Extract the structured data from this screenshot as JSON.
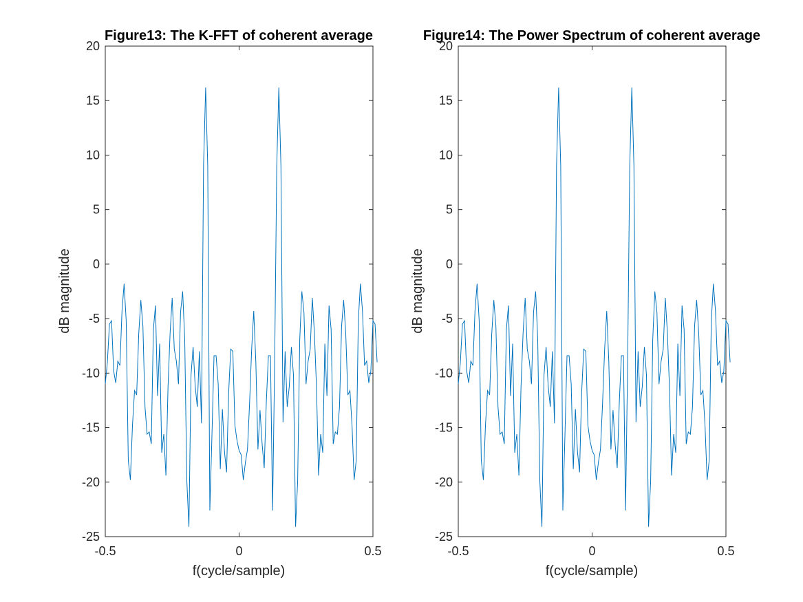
{
  "chart_data": [
    {
      "type": "line",
      "title": "Figure13: The K-FFT of coherent average",
      "xlabel": "f(cycle/sample)",
      "ylabel": "dB magnitude",
      "xlim": [
        -0.5,
        0.5
      ],
      "ylim": [
        -25,
        20
      ],
      "xticks": [
        -0.5,
        0,
        0.5
      ],
      "xtick_labels": [
        "-0.5",
        "0",
        "0.5"
      ],
      "yticks": [
        -25,
        -20,
        -15,
        -10,
        -5,
        0,
        5,
        10,
        15,
        20
      ],
      "ytick_labels": [
        "-25",
        "-20",
        "-15",
        "-10",
        "-5",
        "0",
        "5",
        "10",
        "15",
        "20"
      ],
      "grid": false,
      "color": "#0072BD",
      "x_start": -0.5,
      "x_step": 0.0078125,
      "y": [
        -11,
        -9,
        -5.5,
        -5.2,
        -9.8,
        -10.9,
        -8.9,
        -9.3,
        -4.3,
        -1.8,
        -5.2,
        -18.0,
        -19.8,
        -14.8,
        -11.6,
        -12.0,
        -6.4,
        -3.3,
        -5.7,
        -13.1,
        -15.6,
        -15.4,
        -16.5,
        -6.0,
        -3.8,
        -12.1,
        -7.3,
        -17.3,
        -15.6,
        -19.4,
        -11.3,
        -6.3,
        -3.1,
        -7.8,
        -8.9,
        -11.0,
        -4.4,
        -2.5,
        -6.9,
        -19.9,
        -24.1,
        -10.2,
        -7.6,
        -11.2,
        -13.1,
        -8.0,
        -14.6,
        9.1,
        16.2,
        9.0,
        -22.6,
        -15.8,
        -8.4,
        -8.4,
        -11.0,
        -18.8,
        -13.3,
        -17.2,
        -19.1,
        -11.8,
        -7.8,
        -8.0,
        -14.8,
        -16.2,
        -17.1,
        -17.5,
        -19.8,
        -18.2,
        -17.0,
        -12.8,
        -7.8,
        -4.3,
        -9.0,
        -17.0,
        -13.4,
        -16.5,
        -18.7,
        -12.7,
        -8.4,
        -8.4,
        -22.6,
        -9.0,
        9.0,
        16.2,
        9.0,
        -14.5,
        -8.0,
        -13.1,
        -11.2,
        -7.6,
        -10.2,
        -24.1,
        -19.9,
        -6.9,
        -2.5,
        -4.4,
        -11.0,
        -8.9,
        -7.8,
        -3.1,
        -6.3,
        -11.3,
        -19.4,
        -15.6,
        -17.3,
        -7.3,
        -12.1,
        -3.8,
        -6.0,
        -16.5,
        -15.4,
        -15.6,
        -13.1,
        -5.7,
        -3.3,
        -6.4,
        -12.0,
        -11.6,
        -14.8,
        -19.8,
        -18.0,
        -5.2,
        -1.8,
        -4.3,
        -9.3,
        -8.9,
        -10.9,
        -9.8,
        -5.2,
        -5.5,
        -9.0
      ]
    },
    {
      "type": "line",
      "title": "Figure14: The Power Spectrum of coherent average",
      "xlabel": "f(cycle/sample)",
      "ylabel": "dB magnitude",
      "xlim": [
        -0.5,
        0.5
      ],
      "ylim": [
        -25,
        20
      ],
      "xticks": [
        -0.5,
        0,
        0.5
      ],
      "xtick_labels": [
        "-0.5",
        "0",
        "0.5"
      ],
      "yticks": [
        -25,
        -20,
        -15,
        -10,
        -5,
        0,
        5,
        10,
        15,
        20
      ],
      "ytick_labels": [
        "-25",
        "-20",
        "-15",
        "-10",
        "-5",
        "0",
        "5",
        "10",
        "15",
        "20"
      ],
      "grid": false,
      "color": "#0072BD",
      "x_start": -0.5,
      "x_step": 0.0078125,
      "y": [
        -11,
        -9,
        -5.5,
        -5.2,
        -9.8,
        -10.9,
        -8.9,
        -9.3,
        -4.3,
        -1.8,
        -5.2,
        -18.0,
        -19.8,
        -14.8,
        -11.6,
        -12.0,
        -6.4,
        -3.3,
        -5.7,
        -13.1,
        -15.6,
        -15.4,
        -16.5,
        -6.0,
        -3.8,
        -12.1,
        -7.3,
        -17.3,
        -15.6,
        -19.4,
        -11.3,
        -6.3,
        -3.1,
        -7.8,
        -8.9,
        -11.0,
        -4.4,
        -2.5,
        -6.9,
        -19.9,
        -24.1,
        -10.2,
        -7.6,
        -11.2,
        -13.1,
        -8.0,
        -14.6,
        9.1,
        16.2,
        9.0,
        -22.6,
        -15.8,
        -8.4,
        -8.4,
        -11.0,
        -18.8,
        -13.3,
        -17.2,
        -19.1,
        -11.8,
        -7.8,
        -8.0,
        -14.8,
        -16.2,
        -17.1,
        -17.5,
        -19.8,
        -18.2,
        -17.0,
        -12.8,
        -7.8,
        -4.3,
        -9.0,
        -17.0,
        -13.4,
        -16.5,
        -18.7,
        -12.7,
        -8.4,
        -8.4,
        -22.6,
        -9.0,
        9.0,
        16.2,
        9.0,
        -14.5,
        -8.0,
        -13.1,
        -11.2,
        -7.6,
        -10.2,
        -24.1,
        -19.9,
        -6.9,
        -2.5,
        -4.4,
        -11.0,
        -8.9,
        -7.8,
        -3.1,
        -6.3,
        -11.3,
        -19.4,
        -15.6,
        -17.3,
        -7.3,
        -12.1,
        -3.8,
        -6.0,
        -16.5,
        -15.4,
        -15.6,
        -13.1,
        -5.7,
        -3.3,
        -6.4,
        -12.0,
        -11.6,
        -14.8,
        -19.8,
        -18.0,
        -5.2,
        -1.8,
        -4.3,
        -9.3,
        -8.9,
        -10.9,
        -9.8,
        -5.2,
        -5.5,
        -9.0
      ]
    }
  ]
}
